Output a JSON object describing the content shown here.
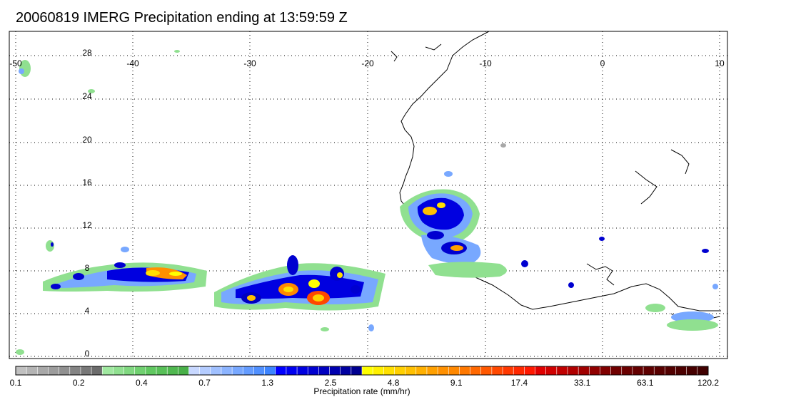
{
  "title": "20060819 IMERG Precipitation ending at 13:59:59 Z",
  "map": {
    "lon_labels": [
      "-50",
      "-40",
      "-30",
      "-20",
      "-10",
      "0",
      "10"
    ],
    "lat_labels": [
      "28",
      "24",
      "20",
      "16",
      "12",
      "8",
      "4",
      "0"
    ],
    "grid": "dotted"
  },
  "colorbar": {
    "label": "Precipitation rate (mm/hr)",
    "tick_labels": [
      "0.1",
      "0.2",
      "0.4",
      "0.7",
      "1.3",
      "2.5",
      "4.8",
      "9.1",
      "17.4",
      "33.1",
      "63.1",
      "120.2"
    ],
    "colors": [
      "#c0c0c0",
      "#b4b4b4",
      "#a8a8a8",
      "#9c9c9c",
      "#909090",
      "#848484",
      "#787878",
      "#6c6c6c",
      "#a0e8a0",
      "#90e090",
      "#80d880",
      "#70d070",
      "#60c860",
      "#58c058",
      "#50b850",
      "#48b048",
      "#c8d8ff",
      "#b4ccff",
      "#a0c0ff",
      "#8cb4ff",
      "#78a8ff",
      "#649cff",
      "#5090ff",
      "#3c84ff",
      "#0000ff",
      "#0000f0",
      "#0000e0",
      "#0000d0",
      "#0000c0",
      "#0000b0",
      "#0000a0",
      "#000090",
      "#ffff00",
      "#fff000",
      "#ffe000",
      "#ffd000",
      "#ffc000",
      "#ffb000",
      "#ffa000",
      "#ff9000",
      "#ff8800",
      "#ff7800",
      "#ff6800",
      "#ff5800",
      "#ff4800",
      "#ff3800",
      "#ff2800",
      "#ff1800",
      "#e00000",
      "#d00000",
      "#c00000",
      "#b00000",
      "#a00000",
      "#900000",
      "#800000",
      "#700000",
      "#6a0000",
      "#640000",
      "#5e0000",
      "#580000",
      "#520000",
      "#4c0000",
      "#460000",
      "#400000"
    ]
  }
}
